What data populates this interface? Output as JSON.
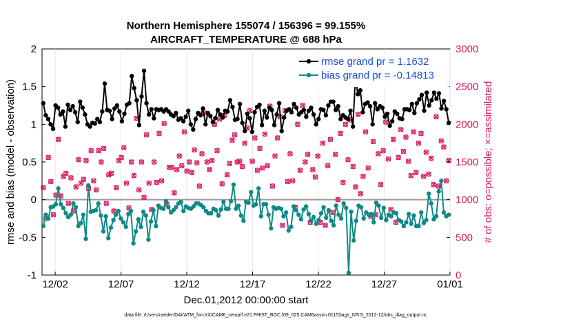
{
  "chart_data": {
    "type": "line",
    "title": "Northern Hemisphere 155074 / 156396 = 99.155%",
    "subtitle": "AIRCRAFT_TEMPERATURE @ 688 hPa",
    "xlabel": "Dec.01,2012 00:00:00 start",
    "ylabel": "rmse and bias (model - observation)",
    "ylabel_right": "# of obs: o=possible; ×=assimilated",
    "ylim": [
      -1,
      2
    ],
    "ylim_right": [
      0,
      3000
    ],
    "xlim": [
      0,
      31
    ],
    "yticks": [
      -1,
      -0.5,
      0,
      0.5,
      1,
      1.5,
      2
    ],
    "yticks_right": [
      0,
      500,
      1000,
      1500,
      2000,
      2500,
      3000
    ],
    "xticks": [
      {
        "pos": 1,
        "label": "12/02"
      },
      {
        "pos": 6,
        "label": "12/07"
      },
      {
        "pos": 11,
        "label": "12/12"
      },
      {
        "pos": 16,
        "label": "12/17"
      },
      {
        "pos": 21,
        "label": "12/22"
      },
      {
        "pos": 26,
        "label": "12/27"
      },
      {
        "pos": 31,
        "label": "01/01"
      }
    ],
    "footer": "data file: /Users/raeder/DAI/ATM_forcXX/CAM6_setup/f.e21.FHIST_BGC.f09_025.CAM6assim.011/Diags_NTrS_2012-12/obs_diag_output.nc",
    "series": [
      {
        "name": "rmse grand pr = 1.1632",
        "color": "#000000",
        "axis": "left",
        "values": [
          1.28,
          1.12,
          1.07,
          1.0,
          0.94,
          1.25,
          1.22,
          1.13,
          1.17,
          0.97,
          1.26,
          1.19,
          1.24,
          1.16,
          1.03,
          1.3,
          1.22,
          1.13,
          1.0,
          0.97,
          1.02,
          1.01,
          1.07,
          1.03,
          1.17,
          1.54,
          1.19,
          1.18,
          1.07,
          1.21,
          1.25,
          1.17,
          1.04,
          1.14,
          1.26,
          1.28,
          1.64,
          1.48,
          1.32,
          0.99,
          1.37,
          1.71,
          1.28,
          1.13,
          1.2,
          1.08,
          1.2,
          1.19,
          1.2,
          1.17,
          1.2,
          1.17,
          1.13,
          1.11,
          1.15,
          1.06,
          1.08,
          1.04,
          1.1,
          1.18,
          1.0,
          0.93,
          1.07,
          1.15,
          1.12,
          1.21,
          1.0,
          1.15,
          1.11,
          1.03,
          1.08,
          1.19,
          1.13,
          1.09,
          1.18,
          1.17,
          1.32,
          1.23,
          1.06,
          1.07,
          1.27,
          1.02,
          0.91,
          1.14,
          1.08,
          0.9,
          1.16,
          1.23,
          1.26,
          0.99,
          1.18,
          1.09,
          1.22,
          1.19,
          0.99,
          1.13,
          1.28,
          0.91,
          1.09,
          1.18,
          1.2,
          1.16,
          1.27,
          1.22,
          1.13,
          1.16,
          1.19,
          1.1,
          1.18,
          1.22,
          1.13,
          1.0,
          1.07,
          1.2,
          1.19,
          1.12,
          1.25,
          1.3,
          1.3,
          1.19,
          1.24,
          1.07,
          1.12,
          1.09,
          1.07,
          1.18,
          0.97,
          1.62,
          1.4,
          1.45,
          1.16,
          1.27,
          1.29,
          1.24,
          1.0,
          1.28,
          1.2,
          1.24,
          1.22,
          1.1,
          1.14,
          0.98,
          1.04,
          1.17,
          1.14,
          1.08,
          1.07,
          1.2,
          1.2,
          1.19,
          1.27,
          1.15,
          1.28,
          1.33,
          1.39,
          1.18,
          1.42,
          1.25,
          1.32,
          1.42,
          1.34,
          1.41,
          1.21,
          1.31,
          1.2,
          1.02
        ]
      },
      {
        "name": "bias grand pr = -0.14813",
        "color": "#0e8a87",
        "axis": "left",
        "values": [
          -0.35,
          -0.2,
          -0.25,
          -0.1,
          -0.09,
          -0.06,
          0.15,
          -0.06,
          -0.11,
          -0.18,
          -0.23,
          -0.2,
          -0.05,
          -0.1,
          -0.35,
          -0.31,
          -0.2,
          -0.52,
          0.19,
          -0.16,
          -0.15,
          -0.14,
          -0.05,
          -0.21,
          -0.42,
          -0.22,
          -0.51,
          -0.37,
          -0.27,
          -0.2,
          -0.15,
          -0.25,
          -0.3,
          -0.36,
          -0.19,
          -0.15,
          -0.58,
          -0.42,
          -0.26,
          -0.36,
          -0.16,
          -0.21,
          -0.53,
          -0.29,
          -0.14,
          -0.35,
          -0.08,
          -0.11,
          -0.12,
          -0.02,
          -0.1,
          -0.17,
          -0.14,
          -0.1,
          -0.05,
          -0.03,
          -0.15,
          -0.09,
          -0.11,
          -0.12,
          -0.09,
          -0.05,
          -0.05,
          -0.07,
          -0.1,
          -0.15,
          -0.18,
          -0.18,
          -0.12,
          -0.14,
          -0.21,
          -0.13,
          -0.03,
          -0.12,
          -0.12,
          -0.02,
          0.2,
          -0.12,
          -0.08,
          -0.21,
          -0.28,
          -0.03,
          -0.04,
          0.1,
          -0.08,
          -0.06,
          0.15,
          -0.22,
          -0.06,
          -0.06,
          -0.2,
          -0.38,
          -0.1,
          -0.12,
          -0.11,
          -0.12,
          -0.22,
          -0.17,
          -0.41,
          -0.36,
          -0.09,
          -0.14,
          -0.2,
          -0.26,
          -0.13,
          -0.09,
          -0.19,
          -0.28,
          -0.23,
          -0.32,
          -0.27,
          -0.18,
          -0.1,
          -0.24,
          -0.14,
          -0.28,
          -0.34,
          -0.08,
          -0.2,
          -0.25,
          -0.05,
          -0.11,
          -0.97,
          -0.16,
          -0.54,
          -0.28,
          -0.08,
          -0.1,
          -0.25,
          -0.17,
          -0.2,
          -0.19,
          -0.3,
          -0.04,
          -0.08,
          -0.24,
          -0.11,
          -0.27,
          -0.2,
          -0.22,
          -0.17,
          -0.18,
          -0.27,
          -0.29,
          -0.35,
          -0.3,
          -0.19,
          -0.32,
          -0.21,
          -0.35,
          -0.35,
          -0.17,
          -0.31,
          -0.27,
          0.08,
          -0.05,
          -0.26,
          -0.22,
          0.11,
          0.25,
          -0.17,
          -0.22,
          -0.2
        ]
      },
      {
        "name": "obs possible / assimilated",
        "color": "#d81b60",
        "axis": "right",
        "values": [
          1160,
          750,
          1560,
          1240,
          800,
          1060,
          1800,
          1050,
          1310,
          1350,
          950,
          1290,
          850,
          1170,
          1530,
          1220,
          1270,
          1520,
          1150,
          1650,
          1250,
          1130,
          1650,
          1500,
          1680,
          950,
          1330,
          1350,
          850,
          1160,
          1520,
          1560,
          1690,
          1220,
          890,
          1500,
          1320,
          2080,
          1130,
          1500,
          1030,
          1860,
          1220,
          870,
          1500,
          1230,
          1880,
          1250,
          2010,
          940,
          1430,
          1430,
          1090,
          1400,
          1580,
          1450,
          1900,
          1380,
          1500,
          1360,
          1660,
          1490,
          1180,
          1610,
          2150,
          1500,
          1400,
          1520,
          2000,
          1650,
          2070,
          1210,
          2120,
          1330,
          1480,
          1790,
          1860,
          1500,
          1510,
          1440,
          1750,
          1950,
          2180,
          1510,
          1820,
          1390,
          1680,
          1420,
          1870,
          1450,
          2240,
          1180,
          1580,
          1820,
          2100,
          660,
          2180,
          1240,
          1610,
          1250,
          900,
          2000,
          1390,
          2250,
          1500,
          1600,
          700,
          1400,
          1300,
          1580,
          700,
          1750,
          660,
          1450,
          1800,
          830,
          1600,
          1000,
          1880,
          1230,
          2000,
          1530,
          2060,
          1440,
          1170,
          2130,
          1080,
          1310,
          1900,
          1420,
          780,
          1770,
          800,
          1610,
          1200,
          1650,
          2030,
          1540,
          870,
          1800,
          700,
          1560,
          1930,
          1640,
          1830,
          1510,
          1320,
          1900,
          1360,
          1750,
          1880,
          1310,
          1630,
          1340,
          1550,
          1200,
          2100,
          1180,
          1780,
          1700,
          1250,
          1520
        ]
      }
    ]
  }
}
